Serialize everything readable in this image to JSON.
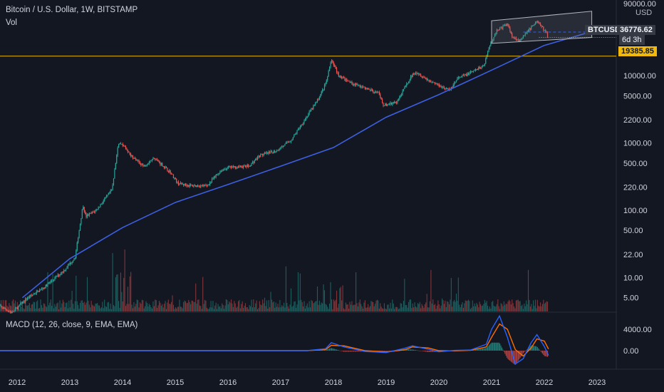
{
  "header": {
    "symbol_title": "Bitcoin / U.S. Dollar, 1W, BITSTAMP",
    "volume_label": "Vol",
    "macd_label": "MACD (12, 26, close, 9, EMA, EMA)",
    "currency": "USD"
  },
  "price_tag": {
    "symbol": "BTCUSD",
    "price": "36776.62",
    "countdown": "6d 3h",
    "color": "#f0f3fa"
  },
  "level_tag": {
    "price": "19385.85",
    "color": "#f0b90b"
  },
  "colors": {
    "up": "#26a69a",
    "down": "#ef5350",
    "macd": "#2962ff",
    "signal": "#ff6d00",
    "trendline": "#3d5fe0"
  },
  "chart_data": [
    {
      "type": "line",
      "panel": "price",
      "scale": "log",
      "y_tick_labels": [
        "90000.00",
        "10000.00",
        "5000.00",
        "2200.00",
        "1000.00",
        "500.00",
        "220.00",
        "100.00",
        "50.00",
        "22.00",
        "10.00",
        "5.00"
      ],
      "y_tick_values": [
        90000,
        10000,
        5000,
        2200,
        1000,
        500,
        220,
        100,
        50,
        22,
        10,
        5
      ],
      "x_tick_labels": [
        "2012",
        "2013",
        "2014",
        "2015",
        "2016",
        "2017",
        "2018",
        "2019",
        "2020",
        "2021",
        "2022",
        "2023"
      ],
      "x_tick_values": [
        2012,
        2013,
        2014,
        2015,
        2016,
        2017,
        2018,
        2019,
        2020,
        2021,
        2022,
        2023
      ],
      "series": [
        {
          "values_x": [
            2011.6,
            2011.9,
            2012.2,
            2012.5,
            2012.9,
            2013.1,
            2013.25,
            2013.3,
            2013.5,
            2013.8,
            2013.92,
            2014.05,
            2014.2,
            2014.4,
            2014.6,
            2014.9,
            2015.05,
            2015.3,
            2015.6,
            2015.85,
            2016.0,
            2016.4,
            2016.6,
            2016.9,
            2017.2,
            2017.5,
            2017.7,
            2017.85,
            2017.96,
            2018.1,
            2018.3,
            2018.6,
            2018.85,
            2018.95,
            2019.2,
            2019.45,
            2019.55,
            2019.8,
            2020.0,
            2020.2,
            2020.35,
            2020.6,
            2020.85,
            2020.97,
            2021.1,
            2021.3,
            2021.4,
            2021.55,
            2021.7,
            2021.86,
            2022.0,
            2022.08
          ]
        }
      ],
      "close_prices": [
        4,
        3,
        5,
        7,
        13,
        20,
        120,
        80,
        100,
        200,
        1000,
        850,
        600,
        450,
        600,
        370,
        250,
        230,
        230,
        380,
        430,
        450,
        650,
        750,
        1100,
        2500,
        4300,
        7500,
        17000,
        10000,
        8000,
        6500,
        5500,
        3600,
        4000,
        9000,
        11500,
        8500,
        7200,
        6000,
        9000,
        11000,
        14000,
        29000,
        47000,
        58000,
        37000,
        33000,
        47000,
        65000,
        47000,
        36776.62
      ],
      "trendline_x": [
        2012.1,
        2013,
        2014,
        2015,
        2016,
        2017,
        2018,
        2019,
        2020,
        2021,
        2022,
        2022.9
      ],
      "trendline_y": [
        5.0,
        19,
        55,
        130,
        240,
        450,
        850,
        2400,
        5200,
        12000,
        28000,
        45000
      ],
      "channel": {
        "x_start": 2021.0,
        "x_end": 2022.9,
        "lower_start": 30000,
        "lower_end": 36776.62,
        "upper_start": 65000,
        "upper_end": 90000
      },
      "horizontal_level": 19385.85,
      "last_price": 36776.62
    },
    {
      "type": "bar",
      "panel": "volume",
      "series": [
        {
          "values_x": [],
          "values": []
        }
      ]
    },
    {
      "type": "line",
      "panel": "macd",
      "y_tick_labels": [
        "4000.00",
        "0.00"
      ],
      "y_tick_values": [
        4000,
        0
      ],
      "x": [
        2011.6,
        2017.5,
        2017.85,
        2017.96,
        2018.2,
        2018.6,
        2019.0,
        2019.35,
        2019.5,
        2019.8,
        2020.0,
        2020.3,
        2020.6,
        2020.9,
        2021.0,
        2021.15,
        2021.3,
        2021.45,
        2021.6,
        2021.75,
        2021.86,
        2022.0,
        2022.08
      ],
      "series": [
        {
          "name": "",
          "values": [
            0,
            0,
            350,
            1500,
            700,
            -150,
            -350,
            450,
            900,
            250,
            -200,
            50,
            120,
            1200,
            4000,
            6500,
            2500,
            -2500,
            -1500,
            1500,
            3000,
            800,
            -900
          ]
        },
        {
          "name": "",
          "values": [
            0,
            0,
            200,
            1000,
            900,
            0,
            -250,
            150,
            700,
            500,
            0,
            -50,
            80,
            700,
            2500,
            5000,
            4000,
            200,
            -1000,
            500,
            2200,
            1800,
            300
          ]
        }
      ]
    }
  ]
}
